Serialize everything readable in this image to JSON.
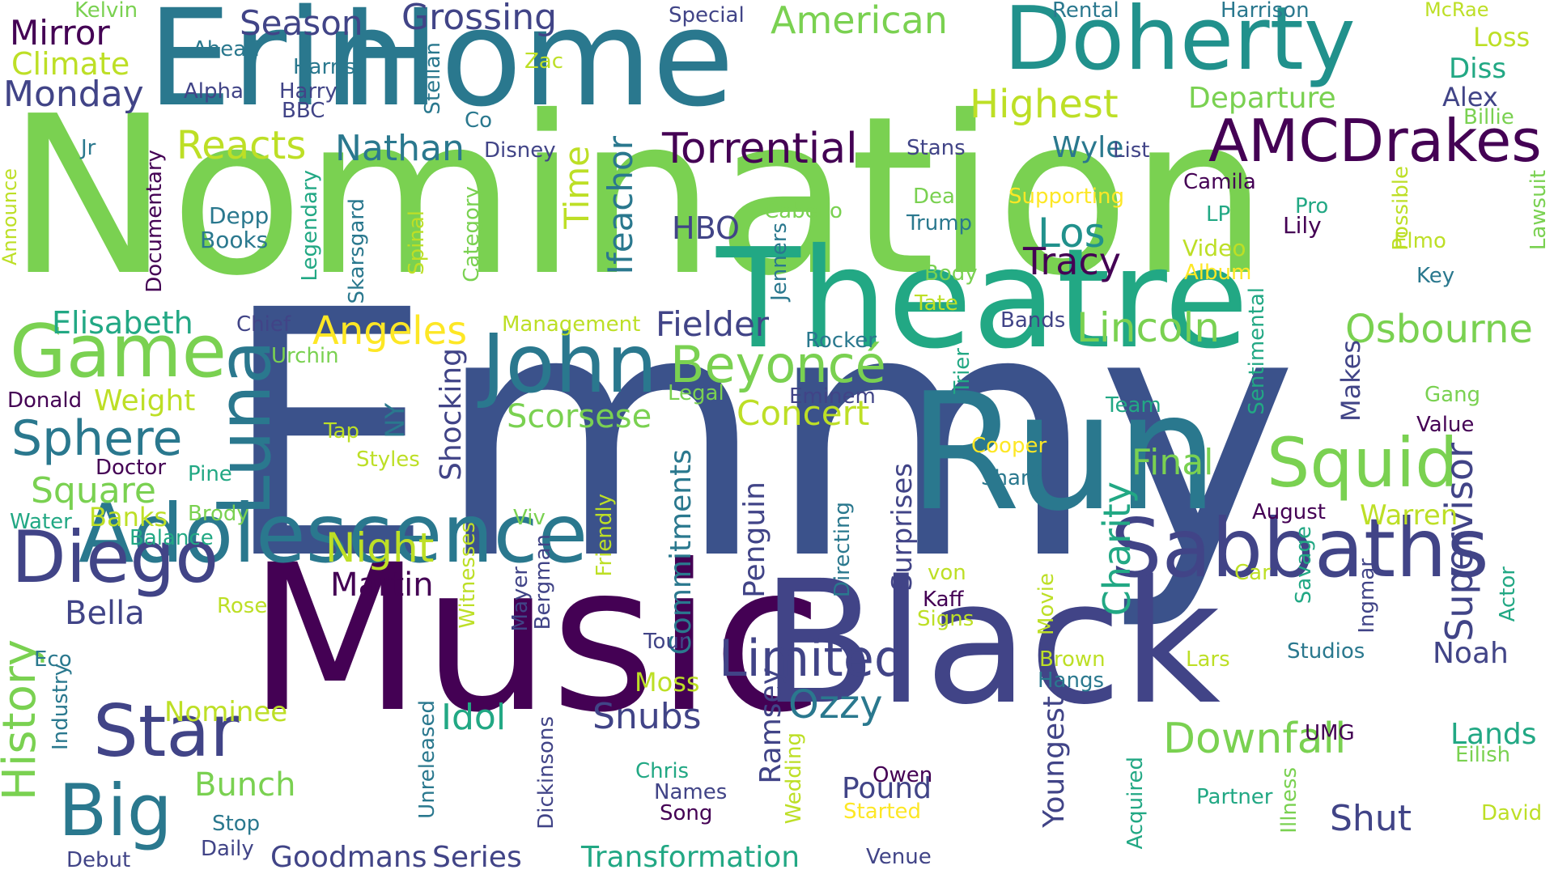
{
  "words": [
    {
      "text": "Nomination",
      "color": "#7ad151"
    },
    {
      "text": "Emmy",
      "color": "#3b528b"
    },
    {
      "text": "Music",
      "color": "#440154"
    },
    {
      "text": "Black",
      "color": "#414487"
    },
    {
      "text": "Theatre",
      "color": "#22a884"
    },
    {
      "text": "Run",
      "color": "#2a788e"
    },
    {
      "text": "Home",
      "color": "#2a788e"
    },
    {
      "text": "Erin",
      "color": "#2a788e"
    },
    {
      "text": "Doherty",
      "color": "#21918c"
    },
    {
      "text": "Adolescence",
      "color": "#2a788e"
    },
    {
      "text": "Sabbaths",
      "color": "#414487"
    },
    {
      "text": "John",
      "color": "#2a788e"
    },
    {
      "text": "Game",
      "color": "#7ad151"
    },
    {
      "text": "Diego",
      "color": "#414487"
    },
    {
      "text": "Star",
      "color": "#414487"
    },
    {
      "text": "Big",
      "color": "#2a788e"
    },
    {
      "text": "Squid",
      "color": "#7ad151"
    },
    {
      "text": "Luna",
      "color": "#2a788e"
    },
    {
      "text": "AMCDrakes",
      "color": "#440154"
    },
    {
      "text": "Beyoncé",
      "color": "#7ad151"
    },
    {
      "text": "Limited",
      "color": "#414487"
    },
    {
      "text": "Sphere",
      "color": "#2a788e"
    },
    {
      "text": "History",
      "color": "#7ad151"
    },
    {
      "text": "Downfall",
      "color": "#7ad151"
    },
    {
      "text": "Osbourne",
      "color": "#7ad151"
    },
    {
      "text": "Lincoln",
      "color": "#7ad151"
    },
    {
      "text": "Torrential",
      "color": "#440154"
    },
    {
      "text": "Supervisor",
      "color": "#414487"
    },
    {
      "text": "Charity",
      "color": "#22a884"
    },
    {
      "text": "Highest",
      "color": "#bddf26"
    },
    {
      "text": "American",
      "color": "#7ad151"
    },
    {
      "text": "Grossing",
      "color": "#414487"
    },
    {
      "text": "Season",
      "color": "#414487"
    },
    {
      "text": "Monday",
      "color": "#414487"
    },
    {
      "text": "Mirror",
      "color": "#440154"
    },
    {
      "text": "Climate",
      "color": "#bddf26"
    },
    {
      "text": "Reacts",
      "color": "#bddf26"
    },
    {
      "text": "Nathan",
      "color": "#2a788e"
    },
    {
      "text": "Angeles",
      "color": "#fde725"
    },
    {
      "text": "Los",
      "color": "#21918c"
    },
    {
      "text": "Tracy",
      "color": "#440154"
    },
    {
      "text": "Night",
      "color": "#bddf26"
    },
    {
      "text": "Martin",
      "color": "#440154"
    },
    {
      "text": "Square",
      "color": "#7ad151"
    },
    {
      "text": "Elisabeth",
      "color": "#22a884"
    },
    {
      "text": "Fielder",
      "color": "#414487"
    },
    {
      "text": "Concert",
      "color": "#bddf26"
    },
    {
      "text": "Scorsese",
      "color": "#7ad151"
    },
    {
      "text": "Idol",
      "color": "#22a884"
    },
    {
      "text": "Snubs",
      "color": "#414487"
    },
    {
      "text": "Ozzy",
      "color": "#2a788e"
    },
    {
      "text": "Pound",
      "color": "#414487"
    },
    {
      "text": "Shut",
      "color": "#414487"
    },
    {
      "text": "Final",
      "color": "#7ad151"
    },
    {
      "text": "Noah",
      "color": "#414487"
    },
    {
      "text": "Lands",
      "color": "#22a884"
    },
    {
      "text": "Transformation",
      "color": "#22a884"
    },
    {
      "text": "Goodmans",
      "color": "#414487"
    },
    {
      "text": "Series",
      "color": "#414487"
    },
    {
      "text": "Bunch",
      "color": "#7ad151"
    },
    {
      "text": "Nominee",
      "color": "#bddf26"
    },
    {
      "text": "Bella",
      "color": "#414487"
    },
    {
      "text": "Weight",
      "color": "#bddf26"
    },
    {
      "text": "Banks",
      "color": "#bddf26"
    },
    {
      "text": "Departure",
      "color": "#7ad151"
    },
    {
      "text": "Wyle",
      "color": "#2a788e"
    },
    {
      "text": "Loss",
      "color": "#bddf26"
    },
    {
      "text": "Diss",
      "color": "#22a884"
    },
    {
      "text": "Alex",
      "color": "#414487"
    },
    {
      "text": "Billie",
      "color": "#7ad151"
    },
    {
      "text": "Warren",
      "color": "#bddf26"
    },
    {
      "text": "Moss",
      "color": "#bddf26"
    },
    {
      "text": "HBO",
      "color": "#414487"
    },
    {
      "text": "Time",
      "color": "#bddf26"
    },
    {
      "text": "Ifeachor",
      "color": "#2a788e"
    },
    {
      "text": "Shocking",
      "color": "#414487"
    },
    {
      "text": "Commitments",
      "color": "#2a788e"
    },
    {
      "text": "Penguin",
      "color": "#414487"
    },
    {
      "text": "Surprises",
      "color": "#414487"
    },
    {
      "text": "Ramsey",
      "color": "#414487"
    },
    {
      "text": "Youngest",
      "color": "#414487"
    },
    {
      "text": "Makes",
      "color": "#414487"
    },
    {
      "text": "NY",
      "color": "#2a788e"
    },
    {
      "text": "Kelvin",
      "color": "#7ad151"
    },
    {
      "text": "Ahead",
      "color": "#2a788e"
    },
    {
      "text": "Harris",
      "color": "#2a788e"
    },
    {
      "text": "Harry",
      "color": "#414487"
    },
    {
      "text": "BBC",
      "color": "#414487"
    },
    {
      "text": "Alpha",
      "color": "#414487"
    },
    {
      "text": "Zac",
      "color": "#bddf26"
    },
    {
      "text": "Co",
      "color": "#2a788e"
    },
    {
      "text": "Stellan",
      "color": "#2a788e"
    },
    {
      "text": "Special",
      "color": "#414487"
    },
    {
      "text": "Rental",
      "color": "#2a788e"
    },
    {
      "text": "Harrison",
      "color": "#2a788e"
    },
    {
      "text": "McRae",
      "color": "#bddf26"
    },
    {
      "text": "Jr",
      "color": "#2a788e"
    },
    {
      "text": "Disney",
      "color": "#414487"
    },
    {
      "text": "Stans",
      "color": "#414487"
    },
    {
      "text": "List",
      "color": "#414487"
    },
    {
      "text": "Camila",
      "color": "#440154"
    },
    {
      "text": "Deal",
      "color": "#7ad151"
    },
    {
      "text": "Supporting",
      "color": "#fde725"
    },
    {
      "text": "Trump",
      "color": "#2a788e"
    },
    {
      "text": "Cabello",
      "color": "#7ad151"
    },
    {
      "text": "LP",
      "color": "#22a884"
    },
    {
      "text": "Pro",
      "color": "#22a884"
    },
    {
      "text": "Lily",
      "color": "#440154"
    },
    {
      "text": "Video",
      "color": "#bddf26"
    },
    {
      "text": "Album",
      "color": "#fde725"
    },
    {
      "text": "Elmo",
      "color": "#bddf26"
    },
    {
      "text": "Key",
      "color": "#2a788e"
    },
    {
      "text": "Body",
      "color": "#7ad151"
    },
    {
      "text": "Tate",
      "color": "#bddf26"
    },
    {
      "text": "Depp",
      "color": "#2a788e"
    },
    {
      "text": "Books",
      "color": "#2a788e"
    },
    {
      "text": "Documentary",
      "color": "#440154"
    },
    {
      "text": "Legendary",
      "color": "#22a884"
    },
    {
      "text": "Skarsgard",
      "color": "#2a788e"
    },
    {
      "text": "Spinal",
      "color": "#bddf26"
    },
    {
      "text": "Category",
      "color": "#7ad151"
    },
    {
      "text": "Announce",
      "color": "#bddf26"
    },
    {
      "text": "Jenners",
      "color": "#2a788e"
    },
    {
      "text": "Possible",
      "color": "#bddf26"
    },
    {
      "text": "Lawsuit",
      "color": "#7ad151"
    },
    {
      "text": "Chief",
      "color": "#414487"
    },
    {
      "text": "Management",
      "color": "#bddf26"
    },
    {
      "text": "Rocker",
      "color": "#2a788e"
    },
    {
      "text": "Bands",
      "color": "#414487"
    },
    {
      "text": "Urchin",
      "color": "#7ad151"
    },
    {
      "text": "Legal",
      "color": "#7ad151"
    },
    {
      "text": "Eminem",
      "color": "#414487"
    },
    {
      "text": "Trier",
      "color": "#22a884"
    },
    {
      "text": "Sentimental",
      "color": "#22a884"
    },
    {
      "text": "Team",
      "color": "#22a884"
    },
    {
      "text": "Gang",
      "color": "#7ad151"
    },
    {
      "text": "Value",
      "color": "#440154"
    },
    {
      "text": "Donald",
      "color": "#440154"
    },
    {
      "text": "Tap",
      "color": "#bddf26"
    },
    {
      "text": "Styles",
      "color": "#bddf26"
    },
    {
      "text": "Cooper",
      "color": "#fde725"
    },
    {
      "text": "Share",
      "color": "#2a788e"
    },
    {
      "text": "Doctor",
      "color": "#440154"
    },
    {
      "text": "Pine",
      "color": "#22a884"
    },
    {
      "text": "Water",
      "color": "#22a884"
    },
    {
      "text": "Brody",
      "color": "#7ad151"
    },
    {
      "text": "Balance",
      "color": "#22a884"
    },
    {
      "text": "August",
      "color": "#440154"
    },
    {
      "text": "Viv",
      "color": "#7ad151"
    },
    {
      "text": "Witnesses",
      "color": "#bddf26"
    },
    {
      "text": "Friendly",
      "color": "#bddf26"
    },
    {
      "text": "Mayer",
      "color": "#414487"
    },
    {
      "text": "Bergman",
      "color": "#414487"
    },
    {
      "text": "Directing",
      "color": "#2a788e"
    },
    {
      "text": "Savage",
      "color": "#22a884"
    },
    {
      "text": "Ingmar",
      "color": "#414487"
    },
    {
      "text": "Actor",
      "color": "#22a884"
    },
    {
      "text": "Car",
      "color": "#bddf26"
    },
    {
      "text": "von",
      "color": "#bddf26"
    },
    {
      "text": "Kaff",
      "color": "#440154"
    },
    {
      "text": "Signs",
      "color": "#bddf26"
    },
    {
      "text": "Rose",
      "color": "#bddf26"
    },
    {
      "text": "Movie",
      "color": "#bddf26"
    },
    {
      "text": "Tour",
      "color": "#414487"
    },
    {
      "text": "Studios",
      "color": "#2a788e"
    },
    {
      "text": "Eco",
      "color": "#2a788e"
    },
    {
      "text": "Industry",
      "color": "#2a788e"
    },
    {
      "text": "Brown",
      "color": "#bddf26"
    },
    {
      "text": "Lars",
      "color": "#bddf26"
    },
    {
      "text": "Hangs",
      "color": "#2a788e"
    },
    {
      "text": "Unreleased",
      "color": "#2a788e"
    },
    {
      "text": "Dickinsons",
      "color": "#414487"
    },
    {
      "text": "UMG",
      "color": "#440154"
    },
    {
      "text": "Eilish",
      "color": "#7ad151"
    },
    {
      "text": "Wedding",
      "color": "#bddf26"
    },
    {
      "text": "Chris",
      "color": "#22a884"
    },
    {
      "text": "Names",
      "color": "#414487"
    },
    {
      "text": "Song",
      "color": "#440154"
    },
    {
      "text": "Owen",
      "color": "#440154"
    },
    {
      "text": "Started",
      "color": "#fde725"
    },
    {
      "text": "Acquired",
      "color": "#22a884"
    },
    {
      "text": "Illness",
      "color": "#7ad151"
    },
    {
      "text": "Partner",
      "color": "#22a884"
    },
    {
      "text": "David",
      "color": "#bddf26"
    },
    {
      "text": "Stop",
      "color": "#2a788e"
    },
    {
      "text": "Daily",
      "color": "#414487"
    },
    {
      "text": "Debut",
      "color": "#414487"
    },
    {
      "text": "Venue",
      "color": "#414487"
    }
  ]
}
